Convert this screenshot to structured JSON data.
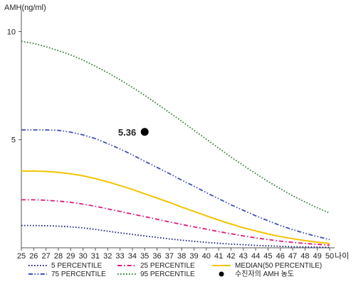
{
  "chart_data": {
    "type": "line",
    "ylabel": "AMH(ng/ml)",
    "xlabel": "나이",
    "x": [
      25,
      26,
      27,
      28,
      29,
      30,
      31,
      32,
      33,
      34,
      35,
      36,
      37,
      38,
      39,
      40,
      41,
      42,
      43,
      44,
      45,
      46,
      47,
      48,
      49,
      50
    ],
    "xlim": [
      25,
      50
    ],
    "ylim": [
      0,
      11
    ],
    "yticks": [
      5,
      10
    ],
    "grid": false,
    "legend_position": "bottom",
    "series": [
      {
        "name": "5 PERCENTILE",
        "color": "#1a237e",
        "dash": "dotted",
        "values": [
          1.03,
          1.03,
          1.02,
          1.0,
          0.97,
          0.92,
          0.85,
          0.77,
          0.69,
          0.62,
          0.55,
          0.48,
          0.41,
          0.35,
          0.3,
          0.25,
          0.21,
          0.17,
          0.14,
          0.11,
          0.09,
          0.07,
          0.05,
          0.04,
          0.03,
          0.02
        ]
      },
      {
        "name": "25 PERCENTILE",
        "color": "#e0197e",
        "dash": "dashdot",
        "values": [
          2.22,
          2.22,
          2.2,
          2.16,
          2.1,
          2.02,
          1.92,
          1.8,
          1.68,
          1.56,
          1.44,
          1.32,
          1.2,
          1.08,
          0.97,
          0.86,
          0.75,
          0.65,
          0.55,
          0.46,
          0.38,
          0.31,
          0.25,
          0.2,
          0.16,
          0.12
        ]
      },
      {
        "name": "MEDIAN(50 PERCENTILE)",
        "color": "#f2c400",
        "dash": "solid",
        "values": [
          3.55,
          3.55,
          3.53,
          3.49,
          3.42,
          3.33,
          3.2,
          3.05,
          2.88,
          2.7,
          2.5,
          2.3,
          2.1,
          1.88,
          1.68,
          1.48,
          1.28,
          1.1,
          0.93,
          0.78,
          0.64,
          0.52,
          0.42,
          0.33,
          0.26,
          0.2
        ]
      },
      {
        "name": "75 PERCENTILE",
        "color": "#3f51b5",
        "dash": "dashdotdot",
        "values": [
          5.45,
          5.45,
          5.45,
          5.43,
          5.35,
          5.22,
          5.05,
          4.82,
          4.57,
          4.3,
          4.0,
          3.72,
          3.43,
          3.13,
          2.85,
          2.55,
          2.27,
          1.99,
          1.73,
          1.48,
          1.25,
          1.03,
          0.84,
          0.67,
          0.52,
          0.38
        ]
      },
      {
        "name": "95 PERCENTILE",
        "color": "#2e7d32",
        "dash": "dotted",
        "values": [
          9.55,
          9.45,
          9.3,
          9.12,
          8.92,
          8.68,
          8.4,
          8.1,
          7.77,
          7.42,
          7.05,
          6.66,
          6.26,
          5.85,
          5.43,
          5.02,
          4.61,
          4.2,
          3.81,
          3.43,
          3.07,
          2.73,
          2.41,
          2.12,
          1.85,
          1.61
        ]
      }
    ],
    "point": {
      "label": "수진자의 AMH 농도",
      "x": 35,
      "y": 5.36,
      "value_label": "5.36",
      "color": "#000000"
    }
  }
}
